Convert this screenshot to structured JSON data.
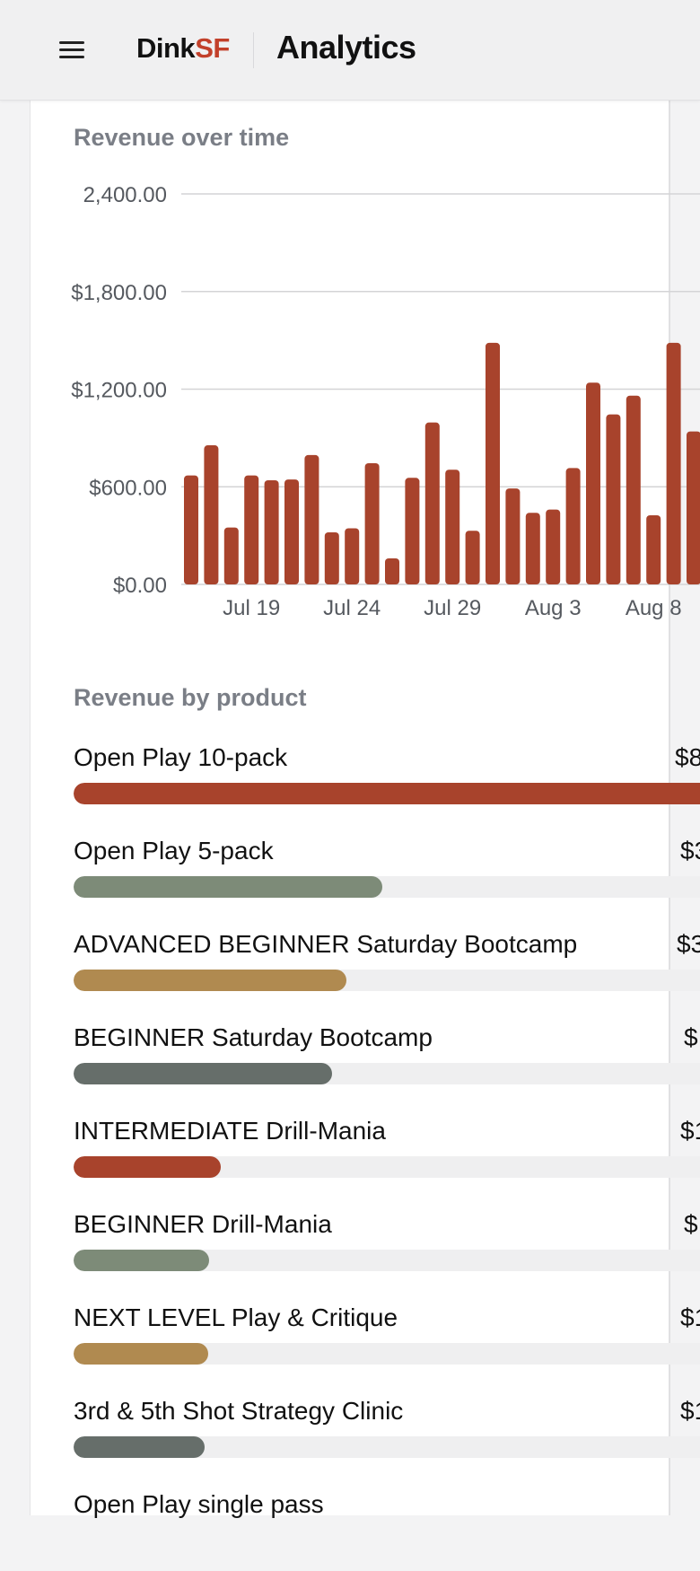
{
  "header": {
    "brand_main": "Dink",
    "brand_accent": "SF",
    "title": "Analytics"
  },
  "revenue_chart": {
    "title": "Revenue over time"
  },
  "chart_data": {
    "type": "bar",
    "title": "Revenue over time",
    "xlabel": "",
    "ylabel": "",
    "ylim": [
      0,
      2400
    ],
    "y_ticks": [
      "$0.00",
      "$600.00",
      "$1,200.00",
      "$1,800.00",
      "2,400.00"
    ],
    "x_ticks": [
      "Jul 19",
      "Jul 24",
      "Jul 29",
      "Aug 3",
      "Aug 8"
    ],
    "bar_color": "#a8432c",
    "grid": true,
    "values": [
      670,
      855,
      350,
      670,
      640,
      645,
      795,
      320,
      345,
      745,
      160,
      655,
      995,
      705,
      330,
      1485,
      590,
      440,
      460,
      715,
      1240,
      1045,
      1160,
      425,
      1485,
      940
    ]
  },
  "products": {
    "title": "Revenue by product",
    "items": [
      {
        "label": "Open Play 10-pack",
        "value": "$8",
        "share": 1.0,
        "color": "#a8432c"
      },
      {
        "label": "Open Play 5-pack",
        "value": "$3",
        "share": 0.478,
        "color": "#7d8b78"
      },
      {
        "label": "ADVANCED BEGINNER Saturday Bootcamp",
        "value": "$3",
        "share": 0.422,
        "color": "#b08a50"
      },
      {
        "label": "BEGINNER Saturday Bootcamp",
        "value": "$",
        "share": 0.4,
        "color": "#666e6a"
      },
      {
        "label": "INTERMEDIATE Drill-Mania",
        "value": "$1",
        "share": 0.228,
        "color": "#a8432c"
      },
      {
        "label": "BEGINNER Drill-Mania",
        "value": "$",
        "share": 0.21,
        "color": "#7d8b78"
      },
      {
        "label": "NEXT LEVEL Play & Critique",
        "value": "$1",
        "share": 0.208,
        "color": "#b08a50"
      },
      {
        "label": "3rd & 5th Shot Strategy Clinic",
        "value": "$1",
        "share": 0.203,
        "color": "#666e6a"
      },
      {
        "label": "Open Play single pass",
        "value": "",
        "share": 0.0,
        "color": "#a8432c"
      }
    ]
  }
}
